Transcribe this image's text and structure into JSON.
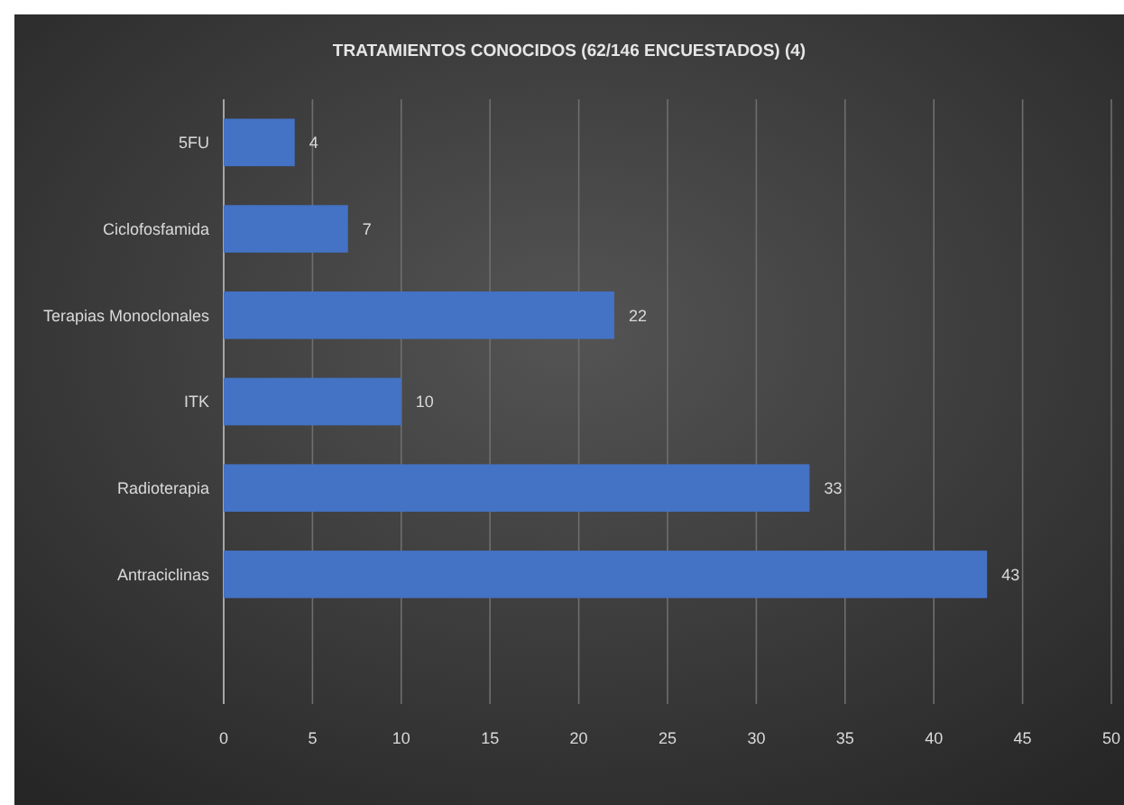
{
  "chart_data": {
    "type": "bar",
    "orientation": "horizontal",
    "title": "TRATAMIENTOS CONOCIDOS (62/146 ENCUESTADOS) (4)",
    "categories": [
      "5FU",
      "Ciclofosfamida",
      "Terapias Monoclonales",
      "ITK",
      "Radioterapia",
      "Antraciclinas",
      null
    ],
    "values": [
      4,
      7,
      22,
      10,
      33,
      43,
      null
    ],
    "color": "#4472c4",
    "xlim": [
      0,
      50
    ],
    "xticks": [
      0,
      5,
      10,
      15,
      20,
      25,
      30,
      35,
      40,
      45,
      50
    ],
    "grid": "x",
    "data_labels": true
  }
}
